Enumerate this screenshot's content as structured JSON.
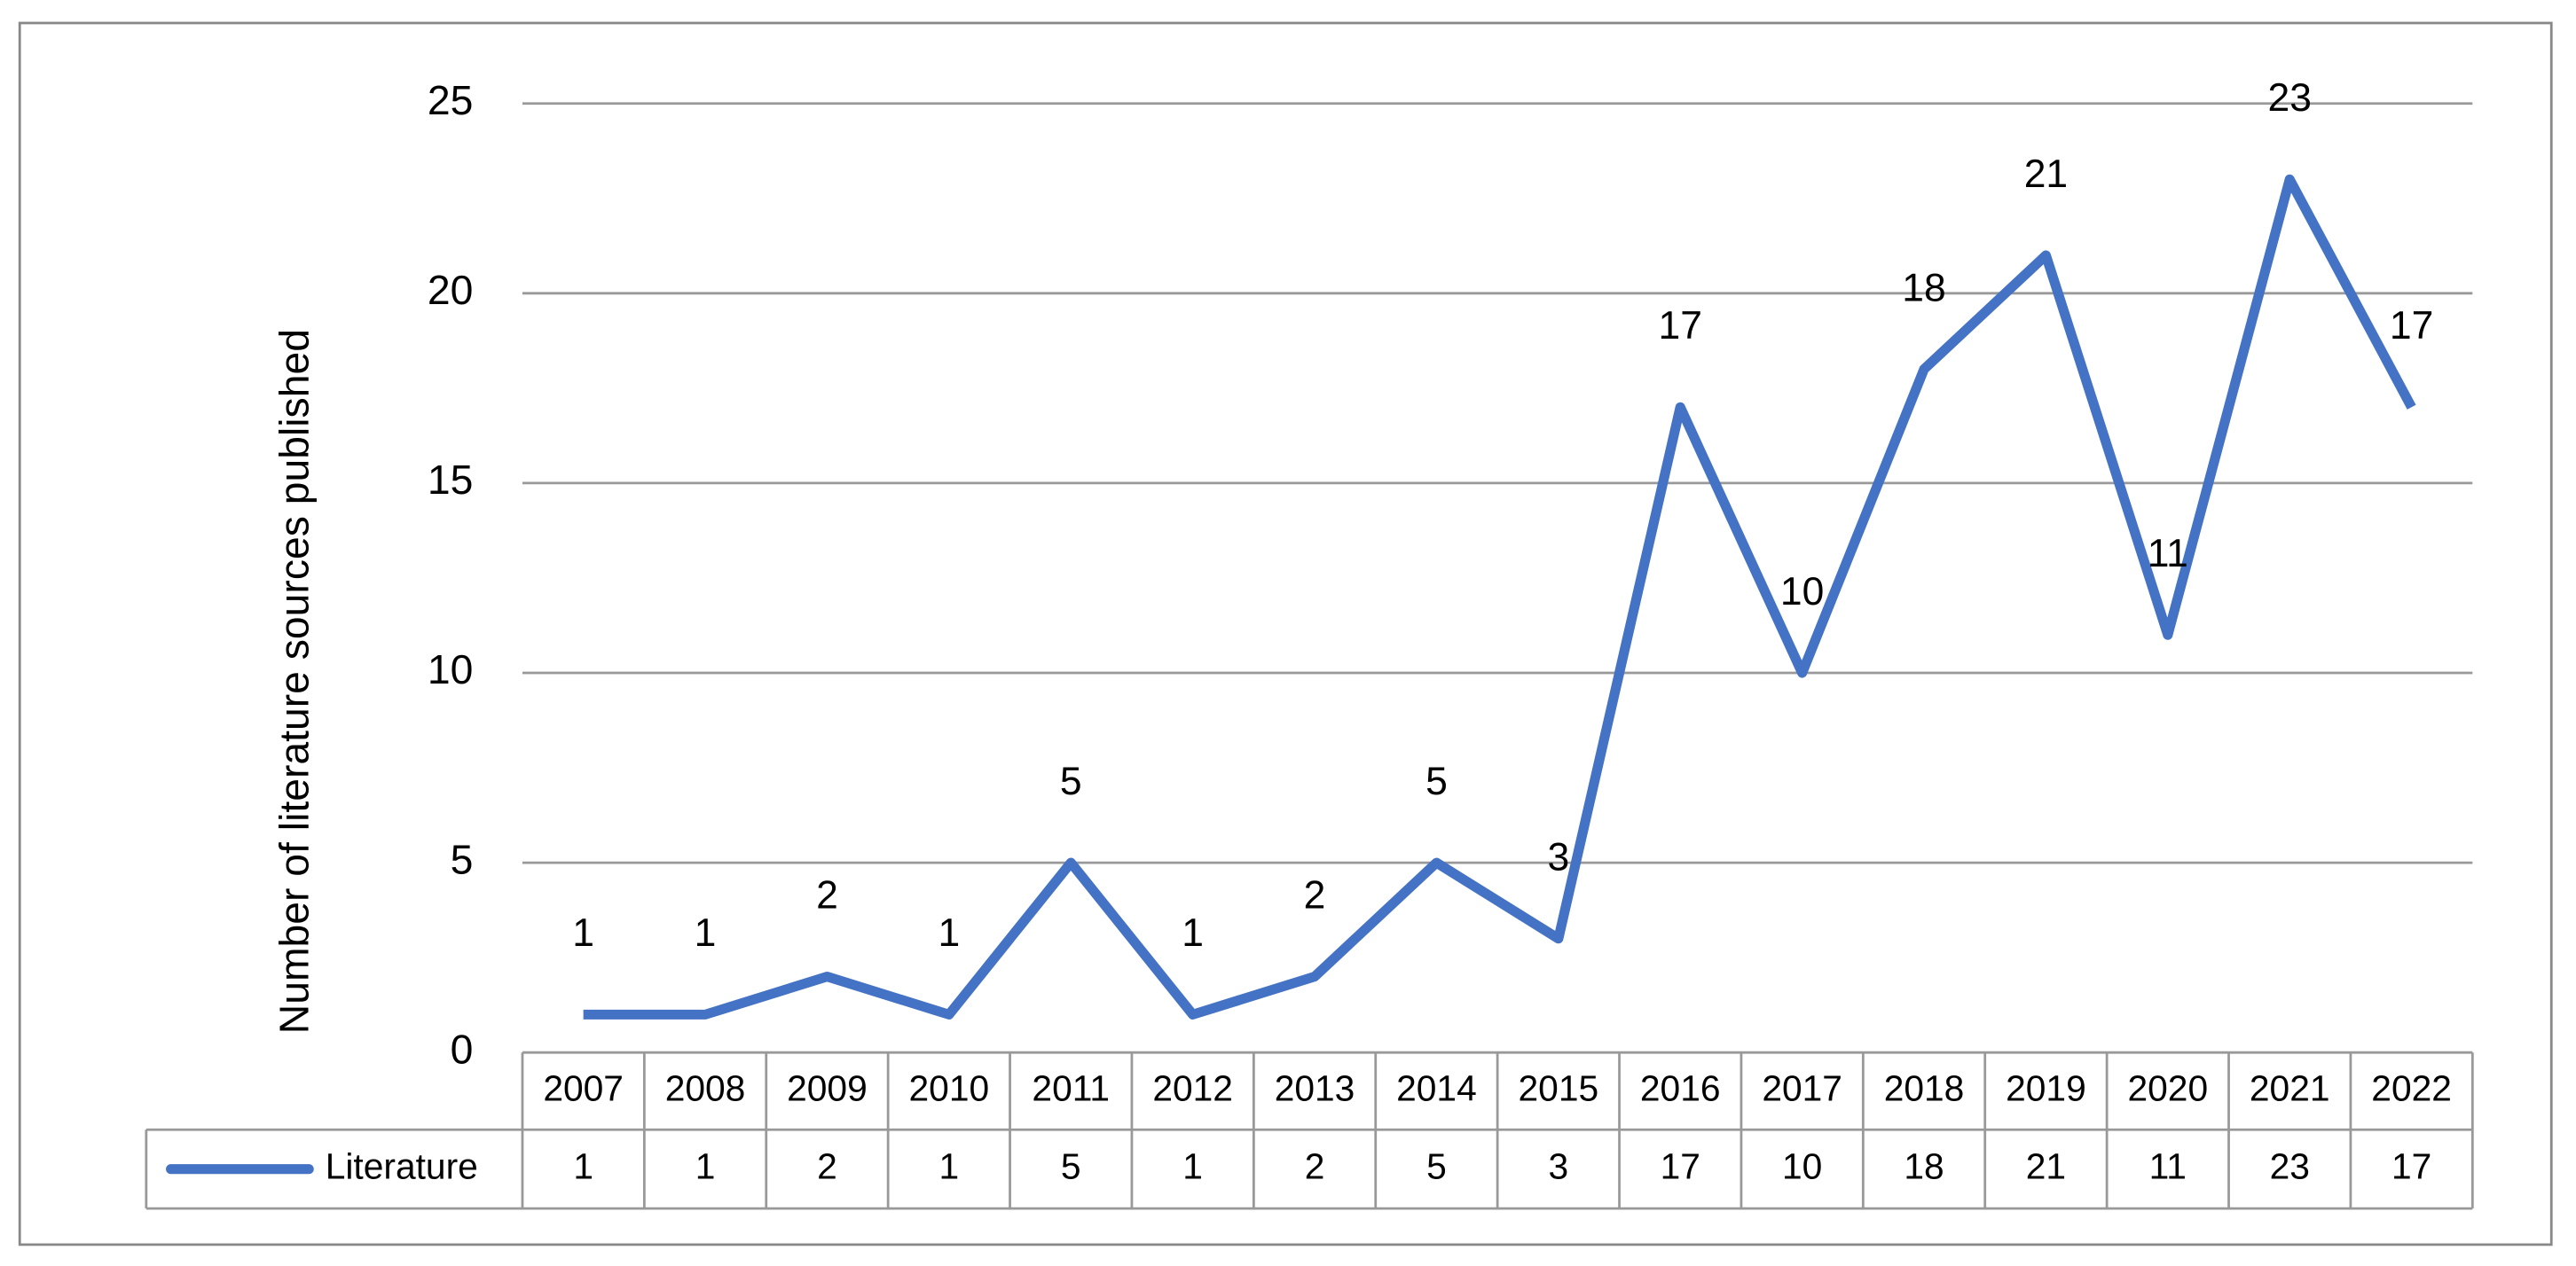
{
  "chart_data": {
    "type": "line",
    "y_label": "Number of literature sources published",
    "categories": [
      "2007",
      "2008",
      "2009",
      "2010",
      "2011",
      "2012",
      "2013",
      "2014",
      "2015",
      "2016",
      "2017",
      "2018",
      "2019",
      "2020",
      "2021",
      "2022"
    ],
    "series": [
      {
        "name": "Literature",
        "color": "#4472c4",
        "values": [
          1,
          1,
          2,
          1,
          5,
          1,
          2,
          5,
          3,
          17,
          10,
          18,
          21,
          11,
          23,
          17
        ]
      }
    ],
    "ylim": [
      0,
      25
    ],
    "yticks": [
      0,
      5,
      10,
      15,
      20,
      25
    ],
    "grid": true,
    "data_labels": true,
    "data_table": true
  }
}
